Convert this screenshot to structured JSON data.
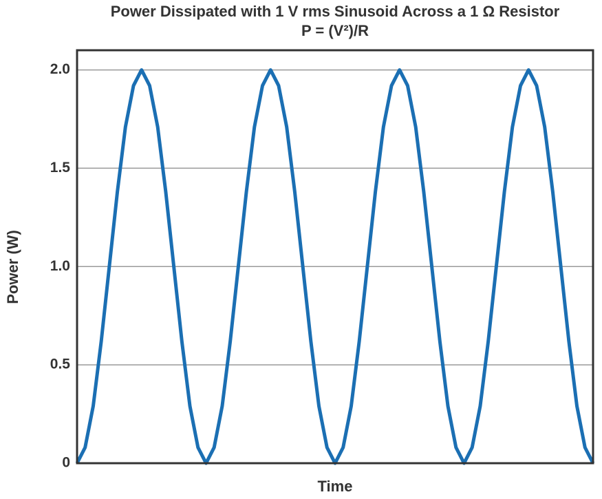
{
  "chart_data": {
    "type": "line",
    "title": "Power Dissipated with 1 V rms Sinusoid Across a 1 Ω Resistor",
    "subtitle": "P = (V²)/R",
    "x_label": "Time",
    "y_label": "Power (W)",
    "values": [
      0,
      0.08,
      0.29,
      0.62,
      1,
      1.38,
      1.71,
      1.92,
      2,
      1.92,
      1.71,
      1.38,
      1,
      0.62,
      0.29,
      0.08,
      0,
      0.08,
      0.29,
      0.62,
      1,
      1.38,
      1.71,
      1.92,
      2,
      1.92,
      1.71,
      1.38,
      1,
      0.62,
      0.29,
      0.08,
      0,
      0.08,
      0.29,
      0.62,
      1,
      1.38,
      1.71,
      1.92,
      2,
      1.92,
      1.71,
      1.38,
      1,
      0.62,
      0.29,
      0.08,
      0,
      0.08,
      0.29,
      0.62,
      1,
      1.38,
      1.71,
      1.92,
      2,
      1.92,
      1.71,
      1.38,
      1,
      0.62,
      0.29,
      0.08,
      0
    ],
    "color": "#1b6fb3",
    "ylim": [
      0,
      2.1
    ],
    "yticks": [
      0,
      0.5,
      {
        "value": 1,
        "label": "1.0"
      },
      1.5,
      {
        "value": 2,
        "label": "2.0"
      }
    ],
    "grid": true
  }
}
